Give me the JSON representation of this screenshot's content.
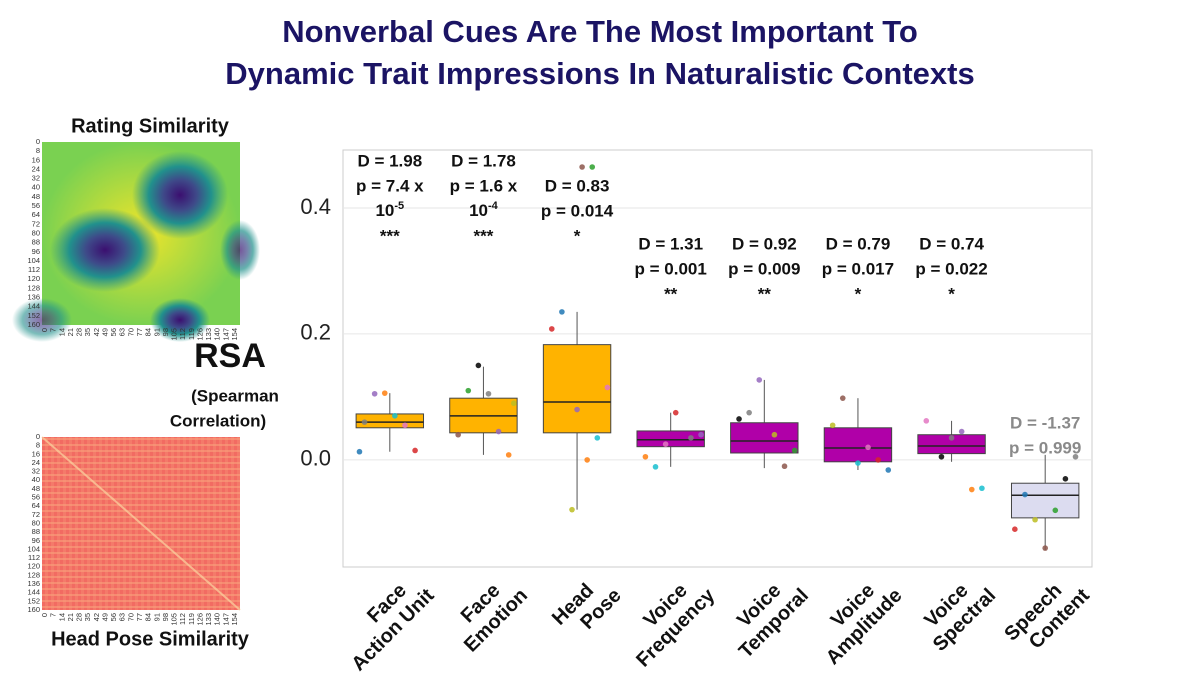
{
  "title_lines": [
    "Nonverbal Cues Are The Most Important To",
    "Dynamic Trait Impressions In Naturalistic Contexts"
  ],
  "heatmaps": [
    {
      "title": "Rating Similarity",
      "yticks": [
        0,
        8,
        16,
        24,
        32,
        40,
        48,
        56,
        64,
        72,
        80,
        88,
        96,
        104,
        112,
        120,
        128,
        136,
        144,
        152,
        160
      ],
      "xticks": [
        0,
        7,
        14,
        21,
        28,
        35,
        42,
        49,
        56,
        63,
        70,
        77,
        84,
        91,
        98,
        105,
        112,
        119,
        126,
        133,
        140,
        147,
        154
      ]
    },
    {
      "title": "Head Pose Similarity",
      "yticks": [
        0,
        8,
        16,
        24,
        32,
        40,
        48,
        56,
        64,
        72,
        80,
        88,
        96,
        104,
        112,
        120,
        128,
        136,
        144,
        152,
        160
      ],
      "xticks": [
        0,
        7,
        14,
        21,
        28,
        35,
        42,
        49,
        56,
        63,
        70,
        77,
        84,
        91,
        98,
        105,
        112,
        119,
        126,
        133,
        140,
        147,
        154
      ]
    }
  ],
  "side_label": {
    "main": "RSA",
    "sub": [
      "(Spearman",
      "Correlation)"
    ]
  },
  "chart_data": {
    "type": "box",
    "categories": [
      "Face Action Unit",
      "Face Emotion",
      "Head Pose",
      "Voice Frequency",
      "Voice Temporal",
      "Voice Amplitude",
      "Voice Spectral",
      "Speech Content"
    ],
    "ylim": [
      -0.17,
      0.492
    ],
    "yticks": [
      {
        "value": 0,
        "label": "0.0"
      },
      {
        "value": 0.2,
        "label": "0.2"
      },
      {
        "value": 0.4,
        "label": "0.4"
      }
    ],
    "grid": true,
    "series": [
      {
        "name": "Face Action Unit",
        "color": "#ffb300",
        "low": 0.013,
        "q1": 0.051,
        "median": 0.06,
        "q3": 0.073,
        "high": 0.106,
        "points": [
          0.013,
          0.015,
          0.055,
          0.07,
          0.106,
          0.105,
          0.06
        ]
      },
      {
        "name": "Face Emotion",
        "color": "#ffb300",
        "low": 0.008,
        "q1": 0.043,
        "median": 0.07,
        "q3": 0.098,
        "high": 0.148,
        "points": [
          0.008,
          0.045,
          0.105,
          0.15,
          0.11,
          0.04,
          0.09
        ]
      },
      {
        "name": "Head Pose",
        "color": "#ffb300",
        "low": -0.079,
        "q1": 0.043,
        "median": 0.092,
        "q3": 0.183,
        "high": 0.235,
        "points": [
          0.465,
          0.465,
          -0.079,
          0.235,
          0.208,
          0.115,
          0.035,
          0.0,
          0.08
        ]
      },
      {
        "name": "Voice Frequency",
        "color": "#b000a8",
        "low": -0.011,
        "q1": 0.021,
        "median": 0.032,
        "q3": 0.046,
        "high": 0.075,
        "points": [
          0.075,
          0.025,
          -0.011,
          0.005,
          0.04,
          0.035
        ]
      },
      {
        "name": "Voice Temporal",
        "color": "#b000a8",
        "low": -0.013,
        "q1": 0.011,
        "median": 0.03,
        "q3": 0.059,
        "high": 0.127,
        "points": [
          0.127,
          0.075,
          0.065,
          0.015,
          -0.01,
          0.04
        ]
      },
      {
        "name": "Voice Amplitude",
        "color": "#b000a8",
        "low": -0.016,
        "q1": -0.003,
        "median": 0.019,
        "q3": 0.051,
        "high": 0.098,
        "points": [
          0.098,
          0.055,
          -0.016,
          0.0,
          0.02,
          -0.005
        ]
      },
      {
        "name": "Voice Spectral",
        "color": "#b000a8",
        "low": -0.003,
        "q1": 0.01,
        "median": 0.022,
        "q3": 0.04,
        "high": 0.062,
        "points": [
          0.062,
          -0.045,
          -0.047,
          0.045,
          0.035,
          0.005
        ]
      },
      {
        "name": "Speech Content",
        "color": "#dcdcf0",
        "low": -0.143,
        "q1": -0.092,
        "median": -0.056,
        "q3": -0.037,
        "high": 0.008,
        "points": [
          0.005,
          -0.03,
          -0.08,
          -0.14,
          -0.095,
          -0.055,
          -0.11
        ]
      }
    ],
    "point_colors": [
      "#1f77b4",
      "#ff7f0e",
      "#2ca02c",
      "#d62728",
      "#9467bd",
      "#8c564b",
      "#e377c2",
      "#7f7f7f",
      "#bcbd22",
      "#17becf",
      "#000000"
    ],
    "annotations": [
      [
        "D = 1.98",
        "p = 7.4 x",
        {
          "text": "10",
          "sup": "-5"
        },
        "***"
      ],
      [
        "D = 1.78",
        "p = 1.6 x",
        {
          "text": "10",
          "sup": "-4"
        },
        "***"
      ],
      [
        "D = 0.83",
        "p = 0.014",
        "*"
      ],
      [
        "D = 1.31",
        "p = 0.001",
        "**"
      ],
      [
        "D = 0.92",
        "p = 0.009",
        "**"
      ],
      [
        "D = 0.79",
        "p = 0.017",
        "*"
      ],
      [
        "D = 0.74",
        "p = 0.022",
        "*"
      ],
      [
        "D = -1.37",
        "p = 0.999"
      ]
    ]
  }
}
